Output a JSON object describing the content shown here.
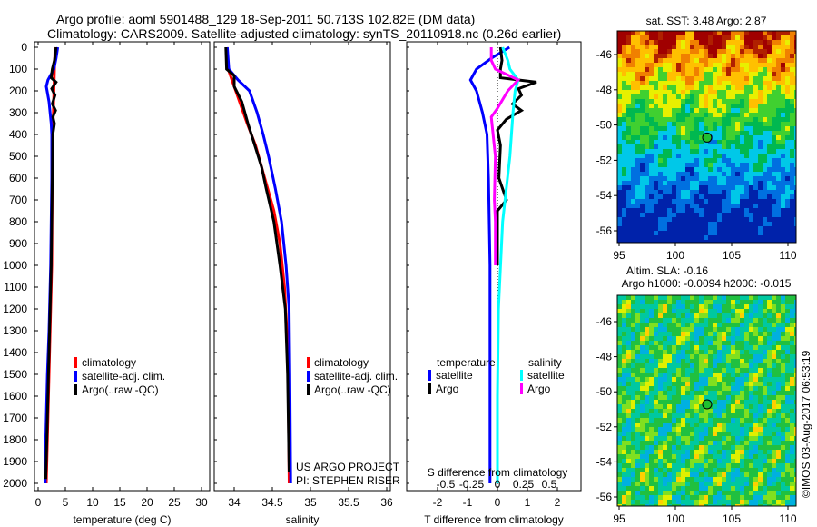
{
  "chart_data": [
    {
      "type": "line",
      "title": "Argo profile: aoml 5901488_129 18-Sep-2011 50.713S 102.82E (DM data)",
      "subtitle": "Climatology: CARS2009. Satellite-adjusted climatology: synTS_20110918.nc (0.26d earlier)",
      "xlabel": "temperature (deg C)",
      "ylabel": "",
      "xlim": [
        -1,
        31
      ],
      "ylim": [
        2040,
        -25
      ],
      "xticks": [
        "0",
        "5",
        "10",
        "15",
        "20",
        "25",
        "30"
      ],
      "yticks": [
        "0",
        "100",
        "200",
        "300",
        "400",
        "500",
        "600",
        "700",
        "800",
        "900",
        "1000",
        "1100",
        "1200",
        "1300",
        "1400",
        "1500",
        "1600",
        "1700",
        "1800",
        "1900",
        "2000"
      ],
      "legend": [
        "climatology",
        "satellite-adj. clim.",
        "Argo(..raw -QC)"
      ],
      "series": [
        {
          "name": "climatology",
          "color": "#ff0000",
          "depth": [
            0,
            100,
            200,
            300,
            400,
            600,
            1000,
            1300,
            1500,
            1800,
            2000
          ],
          "values": [
            3.1,
            3.0,
            2.9,
            2.8,
            2.7,
            2.6,
            2.5,
            2.2,
            2.0,
            1.7,
            1.5
          ]
        },
        {
          "name": "satellite-adj. clim.",
          "color": "#0000ff",
          "depth": [
            0,
            50,
            100,
            150,
            180,
            250,
            350,
            400,
            600,
            1000,
            1300,
            1500,
            1800,
            2000
          ],
          "values": [
            3.6,
            3.3,
            2.9,
            1.8,
            1.5,
            2.0,
            2.4,
            2.5,
            2.5,
            2.3,
            2.0,
            1.7,
            1.4,
            1.3
          ]
        },
        {
          "name": "Argo(..raw -QC)",
          "color": "#000000",
          "depth": [
            0,
            60,
            100,
            140,
            160,
            190,
            220,
            260,
            290,
            320,
            350,
            400,
            600,
            1000,
            1300,
            1500,
            1800,
            1980
          ],
          "values": [
            3.3,
            3.0,
            2.6,
            2.4,
            3.3,
            2.5,
            3.1,
            2.6,
            3.2,
            2.7,
            3.0,
            2.7,
            2.6,
            2.4,
            2.1,
            1.9,
            1.6,
            1.4
          ]
        }
      ]
    },
    {
      "type": "line",
      "xlabel": "salinity",
      "xlim": [
        33.75,
        36.1
      ],
      "ylim": [
        2040,
        -25
      ],
      "xticks": [
        "34",
        "34.5",
        "35",
        "35.5",
        "36"
      ],
      "legend": [
        "climatology",
        "satellite-adj. clim.",
        "Argo(..raw -QC)"
      ],
      "annotation": [
        "US ARGO PROJECT",
        "PI: STEPHEN RISER"
      ],
      "series": [
        {
          "name": "climatology",
          "color": "#ff0000",
          "depth": [
            0,
            100,
            150,
            250,
            350,
            450,
            600,
            750,
            900,
            1100,
            1300,
            1600,
            2000
          ],
          "values": [
            33.9,
            33.92,
            33.97,
            34.07,
            34.17,
            34.28,
            34.4,
            34.52,
            34.6,
            34.66,
            34.69,
            34.71,
            34.72
          ]
        },
        {
          "name": "satellite-adj. clim.",
          "color": "#0000ff",
          "depth": [
            0,
            100,
            150,
            200,
            300,
            400,
            500,
            650,
            800,
            1000,
            1200,
            1500,
            2000
          ],
          "values": [
            33.91,
            33.93,
            34.05,
            34.2,
            34.3,
            34.38,
            34.45,
            34.54,
            34.62,
            34.68,
            34.72,
            34.73,
            34.74
          ]
        },
        {
          "name": "Argo(..raw -QC)",
          "color": "#000000",
          "depth": [
            0,
            100,
            130,
            180,
            250,
            350,
            450,
            550,
            650,
            800,
            1000,
            1200,
            1500,
            1950
          ],
          "values": [
            33.89,
            33.9,
            34.0,
            34.0,
            34.1,
            34.18,
            34.27,
            34.36,
            34.42,
            34.52,
            34.6,
            34.67,
            34.7,
            34.72
          ]
        }
      ]
    },
    {
      "type": "line",
      "xlabel": "T difference from climatology",
      "xlabel_top": "S difference from climatology",
      "xlim": [
        -3,
        2.85
      ],
      "ylim": [
        2040,
        -25
      ],
      "xticks": [
        "-2",
        "-1",
        "0",
        "1",
        "2"
      ],
      "xticks_top": [
        "-0.5",
        "-0.25",
        "0",
        "0.25",
        "0.5"
      ],
      "legend_headers": [
        "temperature",
        "salinity"
      ],
      "legend": [
        "satellite",
        "Argo",
        "satellite",
        "Argo"
      ],
      "series": [
        {
          "name": "temperature satellite",
          "color": "#0000ff",
          "unit": "T",
          "depth": [
            0,
            50,
            100,
            150,
            200,
            300,
            400,
            600,
            1000,
            1500,
            2000
          ],
          "values": [
            0.4,
            -0.2,
            -0.7,
            -0.9,
            -0.7,
            -0.5,
            -0.35,
            -0.3,
            -0.25,
            -0.25,
            -0.25
          ]
        },
        {
          "name": "temperature Argo",
          "color": "#000000",
          "unit": "T",
          "depth": [
            0,
            60,
            100,
            140,
            160,
            190,
            220,
            260,
            290,
            330,
            380,
            450,
            600,
            700,
            750,
            850,
            1000
          ],
          "values": [
            0.1,
            0.15,
            0.1,
            0.1,
            1.3,
            0.7,
            0.8,
            0.5,
            0.8,
            0.3,
            0.0,
            0.1,
            0.05,
            0.3,
            0.0,
            0.0,
            0.0
          ]
        },
        {
          "name": "salinity satellite",
          "color": "#00ffff",
          "unit": "S",
          "depth": [
            0,
            60,
            100,
            150,
            200,
            300,
            500,
            800,
            1200,
            1600,
            2000
          ],
          "values": [
            0.05,
            0.1,
            0.12,
            0.2,
            0.17,
            0.15,
            0.12,
            0.05,
            0.01,
            0.0,
            0.0
          ]
        },
        {
          "name": "salinity Argo",
          "color": "#ff00ff",
          "unit": "S",
          "depth": [
            0,
            60,
            100,
            150,
            200,
            280,
            320,
            500,
            700,
            800,
            1000
          ],
          "values": [
            -0.06,
            -0.06,
            -0.02,
            0.2,
            0.1,
            0.0,
            -0.06,
            -0.02,
            -0.03,
            -0.02,
            -0.02
          ]
        }
      ]
    },
    {
      "type": "heatmap",
      "title": "sat. SST: 3.48 Argo: 2.87",
      "xlim": [
        94.6,
        110.8
      ],
      "ylim": [
        -56.6,
        -44.8
      ],
      "xticks": [
        "95",
        "100",
        "105",
        "110"
      ],
      "yticks": [
        "-46",
        "-48",
        "-50",
        "-52",
        "-54",
        "-56"
      ],
      "marker": {
        "lon": 102.82,
        "lat": -50.713
      }
    },
    {
      "type": "heatmap",
      "title": "Altim. SLA: -0.16",
      "subtitle": "Argo h1000: -0.0094 h2000: -0.015",
      "xlim": [
        94.6,
        110.8
      ],
      "ylim": [
        -56.2,
        -44.8
      ],
      "xticks": [
        "95",
        "100",
        "105",
        "110"
      ],
      "yticks": [
        "-46",
        "-48",
        "-50",
        "-52",
        "-54",
        "-56"
      ],
      "marker": {
        "lon": 102.82,
        "lat": -50.713
      }
    }
  ],
  "credit": "©IMOS 03-Aug-2017 06:53:19"
}
